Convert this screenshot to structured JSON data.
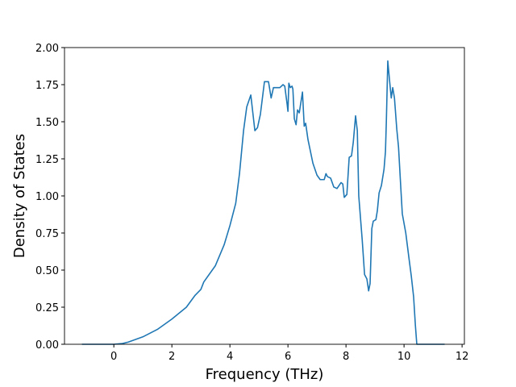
{
  "chart_data": {
    "type": "line",
    "xlabel": "Frequency (THz)",
    "ylabel": "Density of States",
    "xlim": [
      -1.7,
      12.08
    ],
    "ylim": [
      0,
      2
    ],
    "xticks": [
      0,
      2,
      4,
      6,
      8,
      10,
      12
    ],
    "yticks": [
      {
        "value": 0,
        "label": "0.00"
      },
      {
        "value": 0.25,
        "label": "0.25"
      },
      {
        "value": 0.5,
        "label": "0.50"
      },
      {
        "value": 0.75,
        "label": "0.75"
      },
      {
        "value": 1,
        "label": "1.00"
      },
      {
        "value": 1.25,
        "label": "1.25"
      },
      {
        "value": 1.5,
        "label": "1.50"
      },
      {
        "value": 1.75,
        "label": "1.75"
      },
      {
        "value": 2,
        "label": "2.00"
      }
    ],
    "series": [
      {
        "color": "#1f77b4",
        "x": [
          -1.1,
          0,
          0.3,
          0.5,
          1.0,
          1.5,
          2.0,
          2.5,
          2.8,
          3.0,
          3.1,
          3.5,
          3.8,
          4.0,
          4.2,
          4.33,
          4.47,
          4.58,
          4.65,
          4.72,
          4.86,
          4.95,
          5.05,
          5.19,
          5.33,
          5.42,
          5.5,
          5.72,
          5.83,
          5.89,
          5.97,
          6.0,
          6.03,
          6.08,
          6.14,
          6.17,
          6.22,
          6.28,
          6.33,
          6.39,
          6.5,
          6.56,
          6.61,
          6.69,
          6.86,
          7.0,
          7.11,
          7.25,
          7.31,
          7.36,
          7.47,
          7.58,
          7.69,
          7.83,
          7.89,
          7.94,
          8.03,
          8.11,
          8.19,
          8.25,
          8.33,
          8.39,
          8.44,
          8.56,
          8.64,
          8.72,
          8.78,
          8.83,
          8.89,
          8.94,
          9.03,
          9.08,
          9.14,
          9.22,
          9.31,
          9.36,
          9.39,
          9.44,
          9.5,
          9.56,
          9.61,
          9.67,
          9.75,
          9.81,
          9.89,
          9.94,
          10.06,
          10.17,
          10.25,
          10.33,
          10.39,
          10.44,
          11.4
        ],
        "values": [
          0,
          0,
          0.005,
          0.015,
          0.05,
          0.1,
          0.17,
          0.25,
          0.33,
          0.37,
          0.42,
          0.53,
          0.67,
          0.8,
          0.95,
          1.15,
          1.44,
          1.6,
          1.64,
          1.68,
          1.44,
          1.46,
          1.55,
          1.77,
          1.77,
          1.66,
          1.73,
          1.73,
          1.75,
          1.74,
          1.62,
          1.57,
          1.76,
          1.73,
          1.74,
          1.72,
          1.52,
          1.48,
          1.58,
          1.56,
          1.7,
          1.47,
          1.49,
          1.38,
          1.22,
          1.14,
          1.11,
          1.11,
          1.15,
          1.13,
          1.12,
          1.06,
          1.05,
          1.09,
          1.08,
          0.99,
          1.01,
          1.26,
          1.27,
          1.36,
          1.54,
          1.44,
          1.0,
          0.7,
          0.47,
          0.44,
          0.36,
          0.41,
          0.78,
          0.83,
          0.84,
          0.9,
          1.02,
          1.07,
          1.18,
          1.3,
          1.5,
          1.91,
          1.78,
          1.66,
          1.73,
          1.66,
          1.45,
          1.33,
          1.05,
          0.88,
          0.75,
          0.58,
          0.46,
          0.32,
          0.13,
          0,
          0
        ]
      }
    ]
  }
}
